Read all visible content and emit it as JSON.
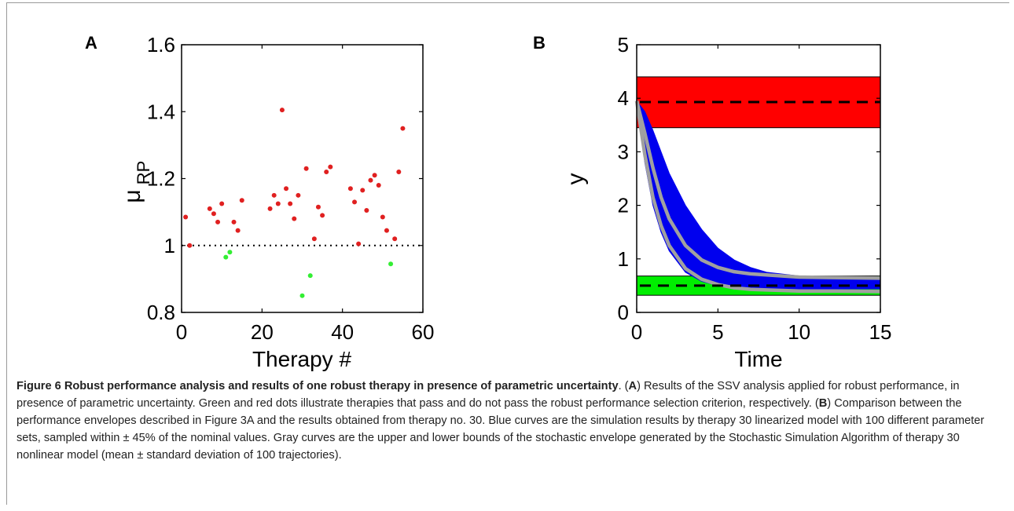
{
  "panel_a": {
    "letter": "A",
    "chart_data": {
      "type": "scatter",
      "xlabel": "Therapy #",
      "ylabel": "μ",
      "ylabel_sub": "RP",
      "xlim": [
        0,
        60
      ],
      "ylim": [
        0.8,
        1.6
      ],
      "xticks": [
        "0",
        "20",
        "40",
        "60"
      ],
      "yticks": [
        "0.8",
        "1",
        "1.2",
        "1.4",
        "1.6"
      ],
      "reference_line": {
        "y": 1,
        "style": "dotted",
        "color": "#000000"
      },
      "colors": {
        "pass": "#33ee33",
        "fail": "#e02020"
      },
      "series": [
        {
          "color": "#e02020",
          "points": [
            [
              1,
              1.085
            ],
            [
              2,
              1.0
            ],
            [
              7,
              1.11
            ],
            [
              8,
              1.095
            ],
            [
              9,
              1.07
            ],
            [
              10,
              1.125
            ],
            [
              13,
              1.07
            ],
            [
              14,
              1.045
            ],
            [
              15,
              1.135
            ],
            [
              22,
              1.11
            ],
            [
              23,
              1.15
            ],
            [
              24,
              1.125
            ],
            [
              25,
              1.405
            ],
            [
              26,
              1.17
            ],
            [
              27,
              1.125
            ],
            [
              28,
              1.08
            ],
            [
              29,
              1.15
            ],
            [
              31,
              1.23
            ],
            [
              33,
              1.02
            ],
            [
              34,
              1.115
            ],
            [
              35,
              1.09
            ],
            [
              36,
              1.22
            ],
            [
              37,
              1.235
            ],
            [
              42,
              1.17
            ],
            [
              43,
              1.13
            ],
            [
              44,
              1.005
            ],
            [
              45,
              1.165
            ],
            [
              46,
              1.105
            ],
            [
              47,
              1.195
            ],
            [
              48,
              1.21
            ],
            [
              49,
              1.18
            ],
            [
              50,
              1.085
            ],
            [
              51,
              1.045
            ],
            [
              53,
              1.02
            ],
            [
              54,
              1.22
            ],
            [
              55,
              1.35
            ]
          ]
        },
        {
          "color": "#33ee33",
          "points": [
            [
              11,
              0.965
            ],
            [
              12,
              0.98
            ],
            [
              30,
              0.85
            ],
            [
              32,
              0.91
            ],
            [
              52,
              0.945
            ]
          ]
        }
      ]
    }
  },
  "panel_b": {
    "letter": "B",
    "chart_data": {
      "type": "line",
      "xlabel": "Time",
      "ylabel": "y",
      "xlim": [
        0,
        15
      ],
      "ylim": [
        0,
        5
      ],
      "xticks": [
        "0",
        "5",
        "10",
        "15"
      ],
      "yticks": [
        "0",
        "1",
        "2",
        "3",
        "4",
        "5"
      ],
      "bands": [
        {
          "y0": 3.45,
          "y1": 4.4,
          "color": "#ff0000",
          "mean": 3.93
        },
        {
          "y0": 0.32,
          "y1": 0.68,
          "color": "#00ee00",
          "mean": 0.5
        }
      ],
      "envelope_linear": {
        "color": "#0000ee",
        "x": [
          0,
          0.5,
          1,
          1.5,
          2,
          3,
          4,
          5,
          6,
          7,
          8,
          10,
          12,
          15
        ],
        "upper": [
          3.95,
          3.75,
          3.4,
          3.0,
          2.6,
          2.0,
          1.55,
          1.2,
          0.98,
          0.84,
          0.75,
          0.68,
          0.67,
          0.66
        ],
        "lower": [
          3.95,
          2.8,
          2.0,
          1.5,
          1.15,
          0.75,
          0.58,
          0.5,
          0.47,
          0.45,
          0.45,
          0.44,
          0.44,
          0.44
        ]
      },
      "bounds_stochastic": {
        "color": "#a0a0a0",
        "x": [
          0,
          0.5,
          1,
          1.5,
          2,
          3,
          4,
          5,
          6,
          7,
          8,
          10,
          12,
          15
        ],
        "upper": [
          3.95,
          3.35,
          2.7,
          2.15,
          1.75,
          1.25,
          0.98,
          0.84,
          0.76,
          0.72,
          0.7,
          0.66,
          0.65,
          0.64
        ],
        "lower": [
          3.95,
          2.95,
          2.15,
          1.62,
          1.25,
          0.82,
          0.62,
          0.52,
          0.46,
          0.43,
          0.42,
          0.4,
          0.4,
          0.39
        ]
      }
    }
  },
  "caption": {
    "lead": "Figure 6 Robust performance analysis and results of one robust therapy in presence of parametric uncertainty",
    "p1": ". (",
    "a": "A",
    "p2": ") Results of the SSV analysis applied for robust performance, in presence of parametric uncertainty. Green and red dots illustrate therapies that pass and do not pass the robust performance selection criterion, respectively. (",
    "b": "B",
    "p3": ") Comparison between the performance envelopes described in Figure 3A and the results obtained from therapy no. 30. Blue curves are the simulation results by therapy 30 linearized model with 100 different parameter sets, sampled within ± 45% of the nominal values. Gray curves are the upper and lower bounds of the stochastic envelope generated by the Stochastic Simulation Algorithm of therapy 30 nonlinear model (mean ± standard deviation of 100 trajectories)."
  }
}
